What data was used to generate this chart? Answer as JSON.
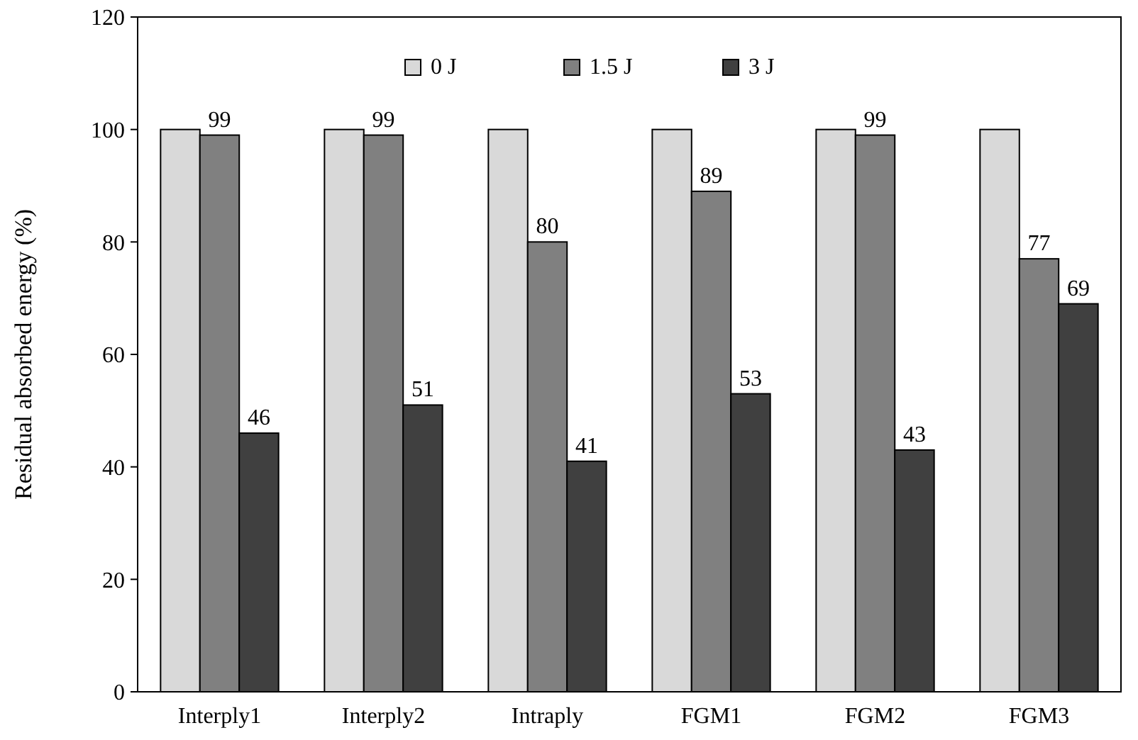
{
  "chart_data": {
    "type": "bar",
    "ylabel": "Residual absorbed energy  (%)",
    "categories": [
      "Interply1",
      "Interply2",
      "Intraply",
      "FGM1",
      "FGM2",
      "FGM3"
    ],
    "series": [
      {
        "name": "0 J",
        "color": "#d9d9d9",
        "values": [
          100,
          100,
          100,
          100,
          100,
          100
        ]
      },
      {
        "name": "1.5 J",
        "color": "#808080",
        "values": [
          99,
          99,
          80,
          89,
          99,
          77
        ],
        "value_labels": [
          "99",
          "99",
          "80",
          "89",
          "99",
          "77"
        ]
      },
      {
        "name": "3 J",
        "color": "#404040",
        "values": [
          46,
          51,
          41,
          53,
          43,
          69
        ],
        "value_labels": [
          "46",
          "51",
          "41",
          "53",
          "43",
          "69"
        ]
      }
    ],
    "ylim": [
      0,
      120
    ],
    "yticks": [
      0,
      20,
      40,
      60,
      80,
      100,
      120
    ],
    "legend": "top",
    "grid": false
  }
}
